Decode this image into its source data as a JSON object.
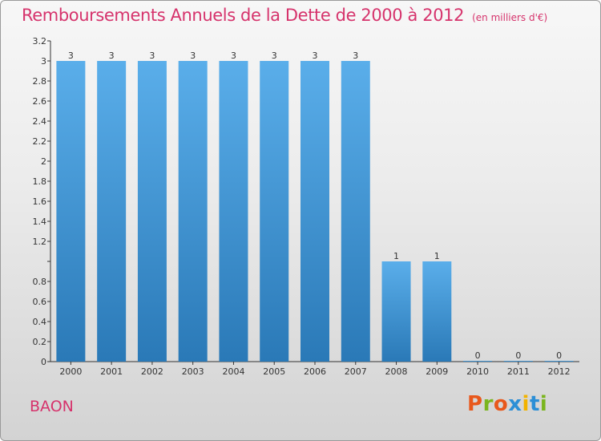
{
  "header": {
    "title": "Remboursements Annuels de la Dette de 2000 à 2012",
    "unit": "(en milliers d'€)"
  },
  "footer": {
    "commune": "BAON",
    "brand": "Proxiti"
  },
  "colors": {
    "title": "#d6336c",
    "bar_light": "#5aaeea",
    "bar_dark": "#2a79b7",
    "brand_letters": [
      "#e8581c",
      "#7ab51d",
      "#e8581c",
      "#2c8fd6",
      "#f2b300",
      "#2c8fd6",
      "#7ab51d"
    ]
  },
  "chart_data": {
    "type": "bar",
    "categories": [
      "2000",
      "2001",
      "2002",
      "2003",
      "2004",
      "2005",
      "2006",
      "2007",
      "2008",
      "2009",
      "2010",
      "2011",
      "2012"
    ],
    "values": [
      3,
      3,
      3,
      3,
      3,
      3,
      3,
      3,
      1,
      1,
      0,
      0,
      0
    ],
    "data_labels": [
      "3",
      "3",
      "3",
      "3",
      "3",
      "3",
      "3",
      "3",
      "1",
      "1",
      "0",
      "0",
      "0"
    ],
    "yticks": [
      0,
      0.2,
      0.4,
      0.6,
      0.8,
      1,
      1.2,
      1.4,
      1.6,
      1.8,
      2,
      2.2,
      2.4,
      2.6,
      2.8,
      3,
      3.2
    ],
    "ytick_labels": [
      "0",
      "0.2",
      "0.4",
      "0.6",
      "0.8",
      "",
      "1.2",
      "1.4",
      "1.6",
      "1.8",
      "2",
      "2.2",
      "2.4",
      "2.6",
      "2.8",
      "3",
      "3.2"
    ],
    "ylim": [
      0,
      3.2
    ],
    "xlabel": "",
    "ylabel": "",
    "grid": false,
    "legend": "none"
  }
}
